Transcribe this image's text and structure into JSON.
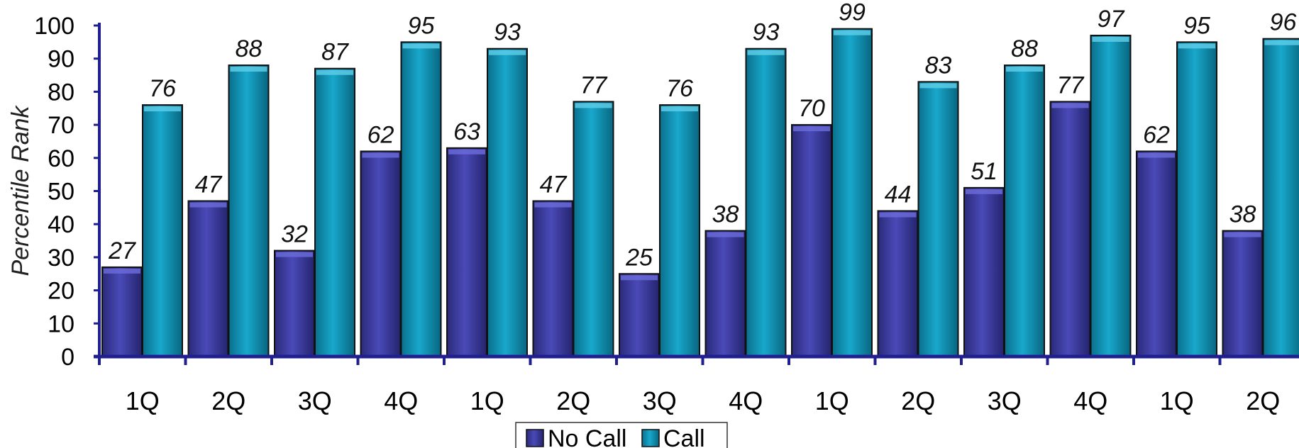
{
  "chart_data": {
    "type": "bar",
    "title": "",
    "xlabel": "",
    "ylabel": "Percentile Rank",
    "ylim": [
      0,
      100
    ],
    "yticks": [
      0,
      10,
      20,
      30,
      40,
      50,
      60,
      70,
      80,
      90,
      100
    ],
    "categories": [
      "1Q",
      "2Q",
      "3Q",
      "4Q",
      "1Q",
      "2Q",
      "3Q",
      "4Q",
      "1Q",
      "2Q",
      "3Q",
      "4Q",
      "1Q",
      "2Q"
    ],
    "series": [
      {
        "name": "No Call",
        "color": "#3a3a9e",
        "values": [
          27,
          47,
          32,
          62,
          63,
          47,
          25,
          38,
          70,
          44,
          51,
          77,
          62,
          38
        ]
      },
      {
        "name": "Call",
        "color": "#0f8fb0",
        "values": [
          76,
          88,
          87,
          95,
          93,
          77,
          76,
          93,
          99,
          83,
          88,
          97,
          95,
          96
        ]
      }
    ],
    "legend": {
      "placement": "bottom-center"
    },
    "axis_color": "#1f1f8f",
    "grid": false
  }
}
